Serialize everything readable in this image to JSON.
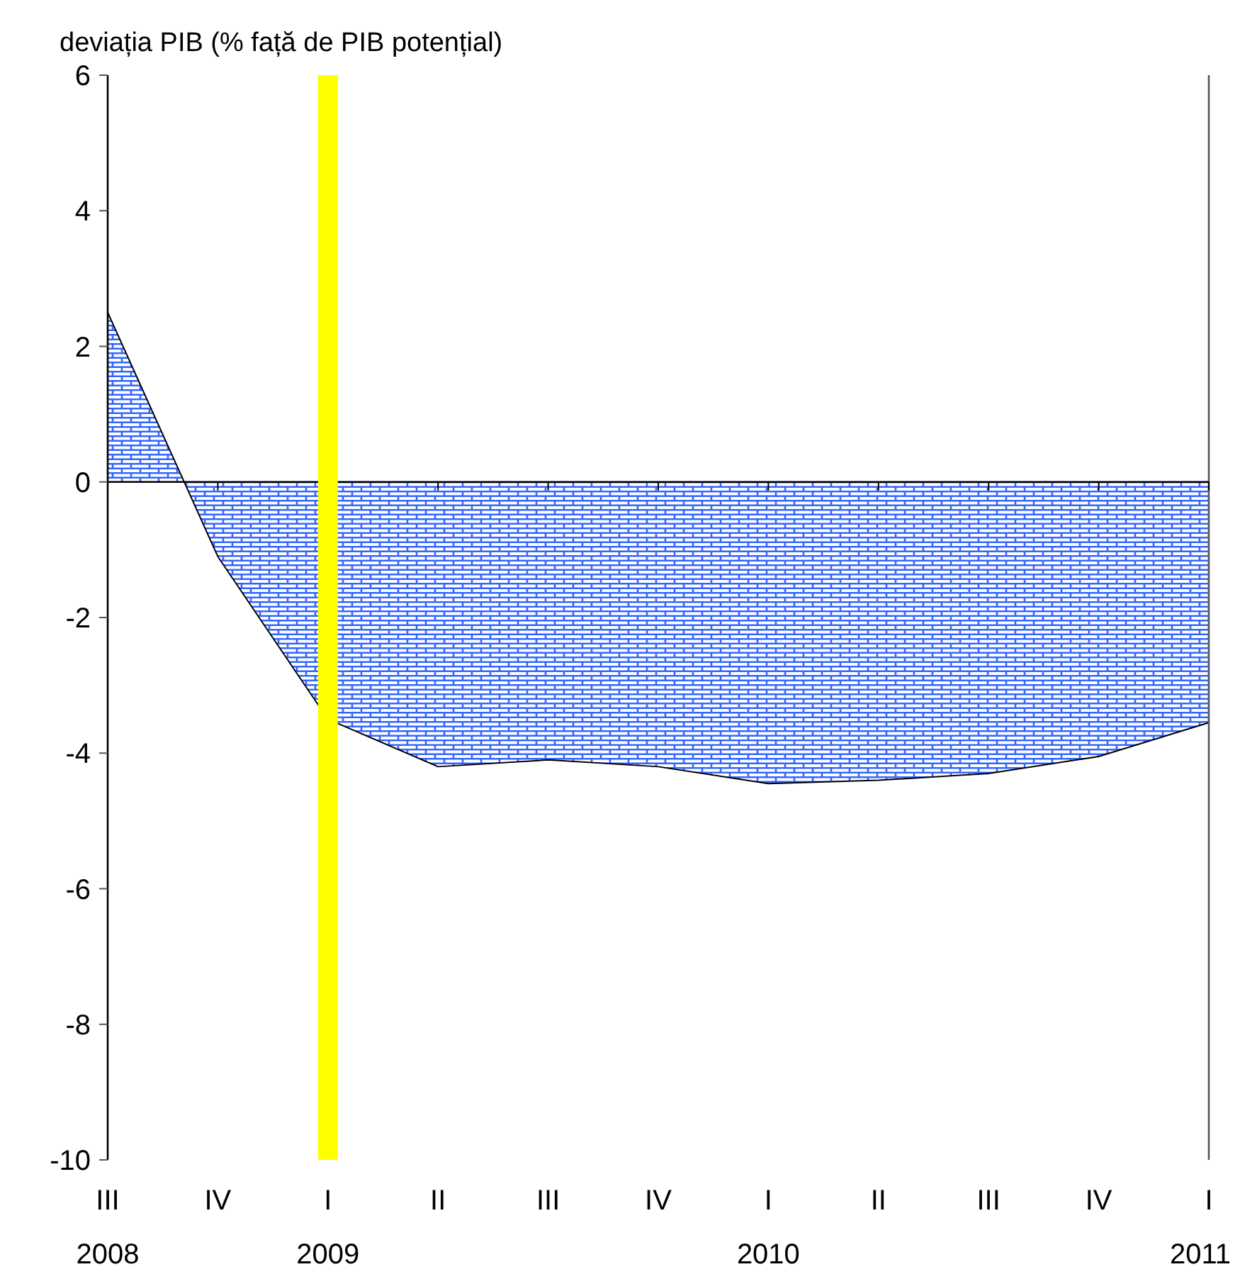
{
  "chart_data": {
    "type": "area",
    "ylabel": "deviația PIB (% față de PIB potențial)",
    "categories": [
      "III\n2008",
      "IV",
      "I\n2009",
      "II",
      "III",
      "IV",
      "I\n2010",
      "II",
      "III",
      "IV",
      "I\n2011"
    ],
    "values": [
      2.5,
      -1.1,
      -3.5,
      -4.2,
      -4.1,
      -4.2,
      -4.45,
      -4.4,
      -4.3,
      -4.05,
      -3.55
    ],
    "color": "#3366ff",
    "ylim": [
      -10,
      6
    ],
    "yticks": [
      -10,
      -8,
      -6,
      -4,
      -2,
      0,
      2,
      4,
      6
    ],
    "ref_lines": [
      {
        "axis": "x",
        "value": "I\n2009",
        "color": "#ffff00"
      }
    ]
  }
}
